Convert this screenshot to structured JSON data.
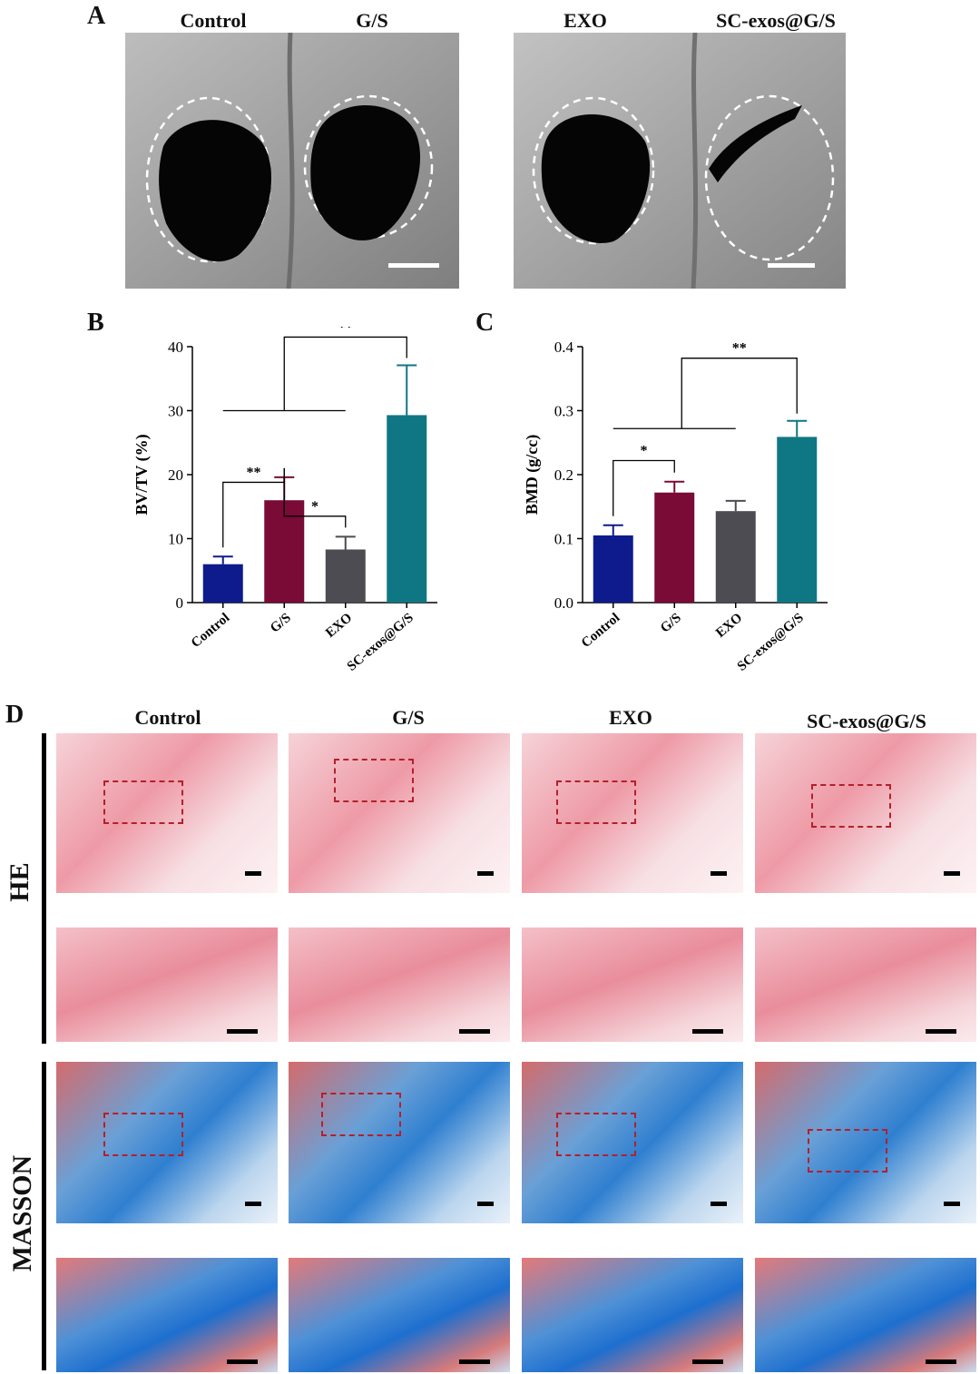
{
  "panel_a": {
    "letter": "A",
    "labels": [
      "Control",
      "G/S",
      "EXO",
      "SC-exos@G/S"
    ]
  },
  "chart_data": [
    {
      "panel": "B",
      "type": "bar",
      "categories": [
        "Control",
        "G/S",
        "EXO",
        "SC-exos@G/S"
      ],
      "values": [
        6.0,
        16.0,
        8.3,
        29.3
      ],
      "errors": [
        1.2,
        3.6,
        2.0,
        7.8
      ],
      "ylabel": "BV/TV (%)",
      "ylim": [
        0,
        40
      ],
      "yticks": [
        0,
        10,
        20,
        30,
        40
      ],
      "colors": [
        "#0d1b8c",
        "#7a0a36",
        "#4c4c52",
        "#0f7783"
      ],
      "significance": [
        {
          "from": 0,
          "to": 1,
          "label": "**"
        },
        {
          "from": 1,
          "to": 2,
          "label": "*"
        },
        {
          "from": "Control–EXO",
          "to": 3,
          "label": "**"
        }
      ]
    },
    {
      "panel": "C",
      "type": "bar",
      "categories": [
        "Control",
        "G/S",
        "EXO",
        "SC-exos@G/S"
      ],
      "values": [
        0.105,
        0.172,
        0.143,
        0.259
      ],
      "errors": [
        0.016,
        0.017,
        0.016,
        0.025
      ],
      "ylabel": "BMD (g/cc)",
      "ylim": [
        0,
        0.4
      ],
      "yticks": [
        "0.0",
        "0.1",
        "0.2",
        "0.3",
        "0.4"
      ],
      "colors": [
        "#0d1b8c",
        "#7a0a36",
        "#4c4c52",
        "#0f7783"
      ],
      "significance": [
        {
          "from": 0,
          "to": 1,
          "label": "*"
        },
        {
          "from": "Control–EXO",
          "to": 3,
          "label": "**"
        }
      ]
    }
  ],
  "panel_d": {
    "letter": "D",
    "columns": [
      "Control",
      "G/S",
      "EXO",
      "SC-exos@G/S"
    ],
    "rows": [
      "HE",
      "MASSON"
    ]
  }
}
